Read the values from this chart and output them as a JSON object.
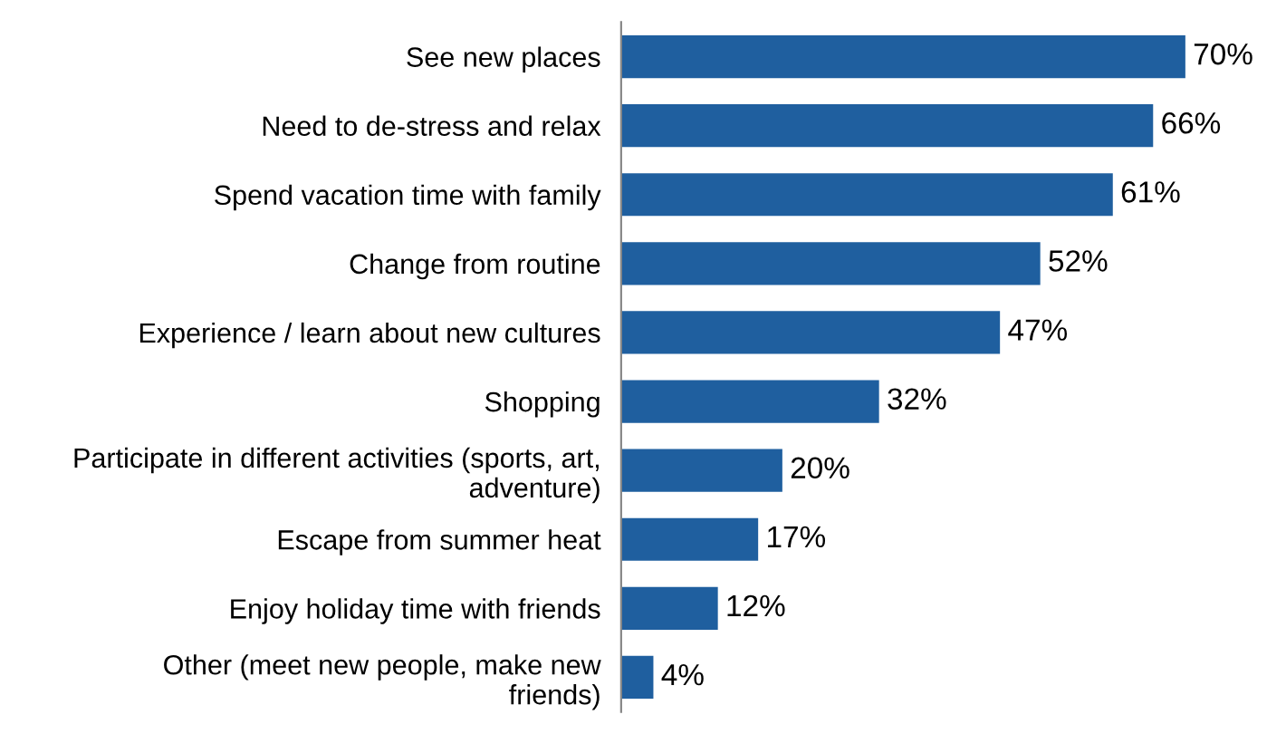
{
  "chart_data": {
    "type": "bar",
    "orientation": "horizontal",
    "grid": false,
    "legend": false,
    "categories": [
      "See new places",
      "Need to de-stress and relax",
      "Spend vacation time with family",
      "Change from routine",
      "Experience / learn about new cultures",
      "Shopping",
      "Participate in different activities (sports, art,\nadventure)",
      "Escape from summer heat",
      "Enjoy holiday time with friends",
      "Other (meet new people, make new\nfriends)"
    ],
    "values": [
      70,
      66,
      61,
      52,
      47,
      32,
      20,
      17,
      12,
      4
    ],
    "value_labels": [
      "70%",
      "66%",
      "61%",
      "52%",
      "47%",
      "32%",
      "20%",
      "17%",
      "12%",
      "4%"
    ],
    "color": "#1f5f9f"
  }
}
